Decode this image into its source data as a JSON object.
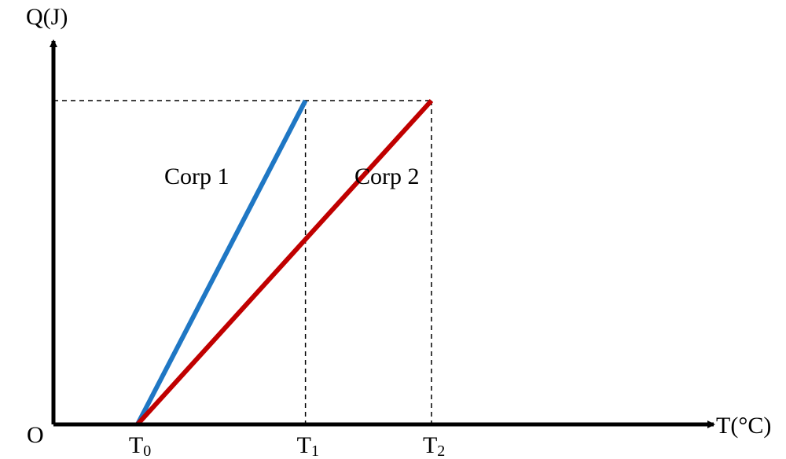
{
  "chart_data": {
    "type": "line",
    "ylabel": "Q(J)",
    "xlabel": "T(°C)",
    "origin_label": "O",
    "xaxis_ticks": [
      {
        "base": "T",
        "sub": "0",
        "value": 1
      },
      {
        "base": "T",
        "sub": "1",
        "value": 3
      },
      {
        "base": "T",
        "sub": "2",
        "value": 4.5
      }
    ],
    "x_range": [
      0,
      5.3
    ],
    "y_range": [
      0,
      4.5
    ],
    "grid": false,
    "guide_y_value": 4,
    "series": [
      {
        "name": "Corp 1",
        "color": "#1f77c4",
        "points": [
          [
            1,
            0
          ],
          [
            3,
            4
          ]
        ]
      },
      {
        "name": "Corp 2",
        "color": "#c00000",
        "points": [
          [
            1,
            0
          ],
          [
            4.5,
            4
          ]
        ]
      }
    ]
  }
}
